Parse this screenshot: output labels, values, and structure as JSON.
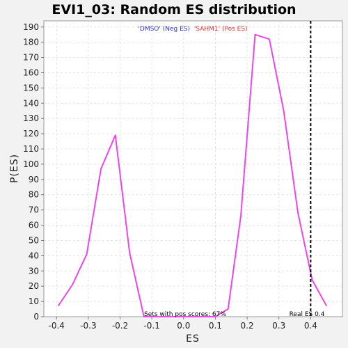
{
  "chart_data": {
    "type": "line",
    "title": "EVI1_03: Random ES distribution",
    "xlabel": "ES",
    "ylabel": "P(ES)",
    "xlim": [
      -0.44,
      0.5
    ],
    "ylim": [
      0,
      194
    ],
    "x_ticks": [
      "-0.4",
      "-0.3",
      "-0.2",
      "-0.1",
      "0.0",
      "0.1",
      "0.2",
      "0.3",
      "0.4"
    ],
    "y_ticks": [
      "0",
      "10",
      "20",
      "30",
      "40",
      "50",
      "60",
      "70",
      "80",
      "90",
      "100",
      "110",
      "120",
      "130",
      "140",
      "150",
      "160",
      "170",
      "180",
      "190"
    ],
    "grid": true,
    "legend": {
      "neg_label": "'DMSO' (Neg ES)",
      "pos_label": "'SAHM1' (Pos ES)",
      "neg_color": "#3333cc",
      "pos_color": "#dd3333",
      "placement": "top-center"
    },
    "series": [
      {
        "color": "#ee44ee",
        "x": [
          -0.395,
          -0.35,
          -0.305,
          -0.26,
          -0.215,
          -0.17,
          -0.125,
          -0.08,
          -0.035,
          0.01,
          0.055,
          0.1,
          0.14,
          0.18,
          0.225,
          0.27,
          0.315,
          0.36,
          0.405,
          0.45
        ],
        "values": [
          7,
          21,
          41,
          97,
          119,
          42,
          0,
          0,
          0,
          0,
          0,
          0,
          5,
          66,
          185,
          182,
          135,
          68,
          24,
          7
        ]
      }
    ],
    "real_es": {
      "value": 0.4,
      "label": "Real ES 0.4",
      "color": "#000000"
    },
    "footnote": "Sets with pos scores: 67%"
  }
}
